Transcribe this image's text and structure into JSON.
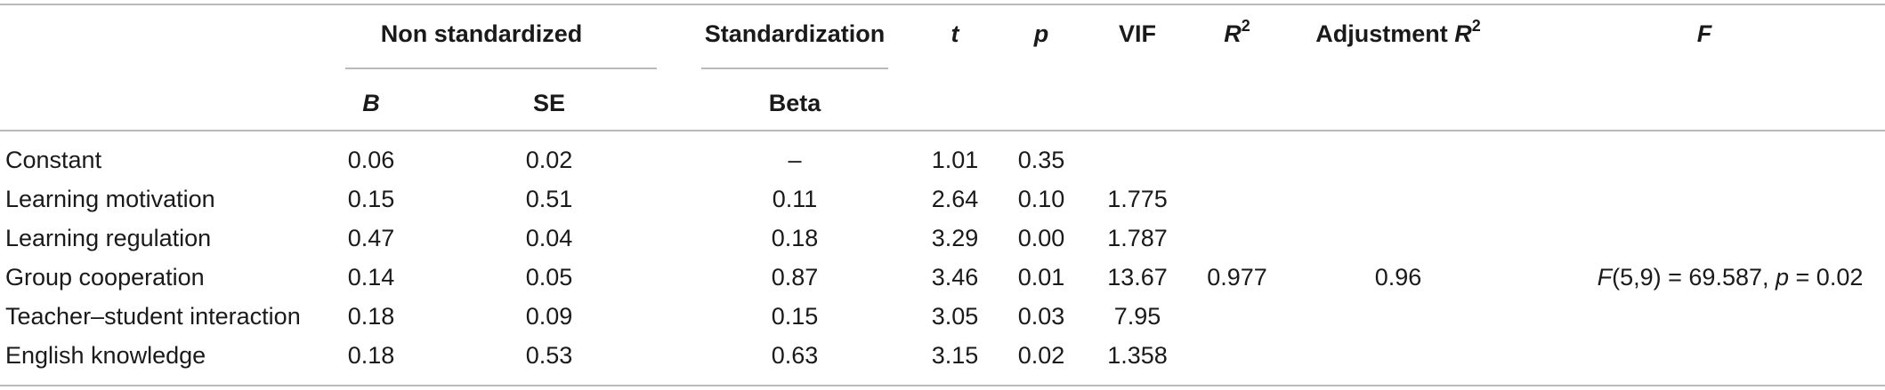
{
  "header": {
    "group_nonstd": "Non standardized",
    "group_std": "Standardization",
    "col_t": "t",
    "col_p": "p",
    "col_vif": "VIF",
    "col_r2_base": "R",
    "col_r2_sup": "2",
    "col_adj_prefix": "Adjustment ",
    "col_adj_r": "R",
    "col_adj_sup": "2",
    "col_f": "F",
    "sub_b": "B",
    "sub_se": "SE",
    "sub_beta": "Beta"
  },
  "rows": [
    {
      "label": "Constant",
      "b": "0.06",
      "se": "0.02",
      "beta": "–",
      "t": "1.01",
      "p": "0.35",
      "vif": ""
    },
    {
      "label": "Learning motivation",
      "b": "0.15",
      "se": "0.51",
      "beta": "0.11",
      "t": "2.64",
      "p": "0.10",
      "vif": "1.775"
    },
    {
      "label": "Learning regulation",
      "b": "0.47",
      "se": "0.04",
      "beta": "0.18",
      "t": "3.29",
      "p": "0.00",
      "vif": "1.787"
    },
    {
      "label": "Group cooperation",
      "b": "0.14",
      "se": "0.05",
      "beta": "0.87",
      "t": "3.46",
      "p": "0.01",
      "vif": "13.67"
    },
    {
      "label": "Teacher–student interaction",
      "b": "0.18",
      "se": "0.09",
      "beta": "0.15",
      "t": "3.05",
      "p": "0.03",
      "vif": "7.95"
    },
    {
      "label": "English knowledge",
      "b": "0.18",
      "se": "0.53",
      "beta": "0.63",
      "t": "3.15",
      "p": "0.02",
      "vif": "1.358"
    }
  ],
  "summary": {
    "r2": "0.977",
    "adj_r2": "0.96",
    "f_prefix": "F",
    "f_rest": "(5,9) = 69.587, ",
    "f_p": "p",
    "f_pval": " = 0.02"
  }
}
